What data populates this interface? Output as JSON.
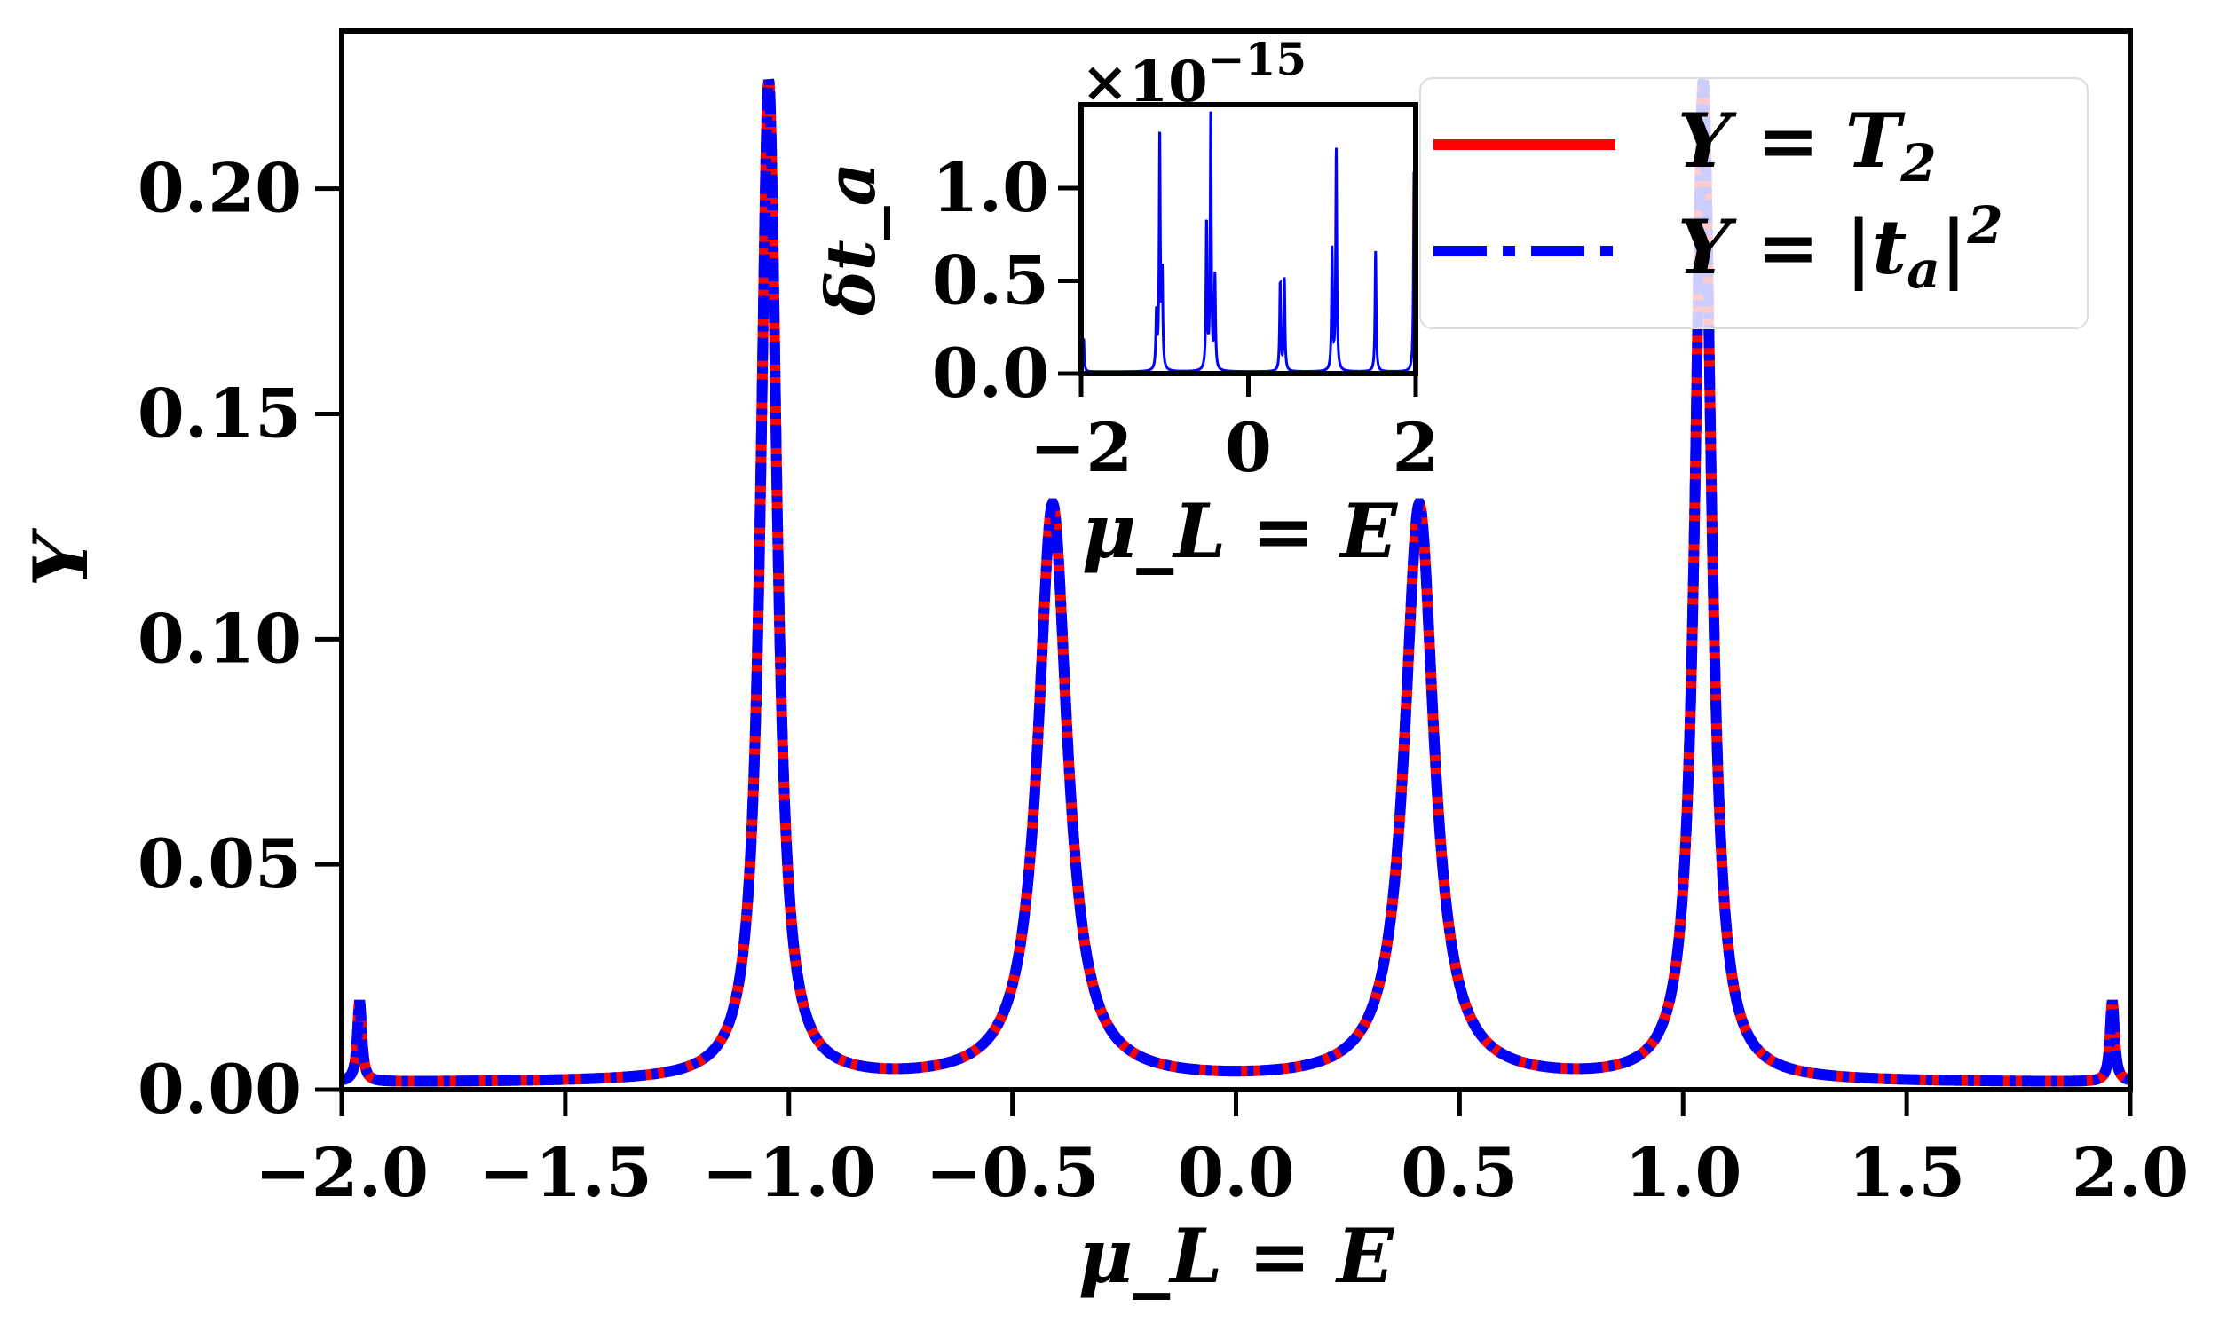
{
  "chart_data": [
    {
      "type": "line",
      "xlabel": "μ_L = E",
      "ylabel": "Y",
      "xlim": [
        -2.0,
        2.0
      ],
      "ylim": [
        0.0,
        0.235
      ],
      "x_ticks": [
        "−2.0",
        "−1.5",
        "−1.0",
        "−0.5",
        "0.0",
        "0.5",
        "1.0",
        "1.5",
        "2.0"
      ],
      "x_tick_values": [
        -2.0,
        -1.5,
        -1.0,
        -0.5,
        0.0,
        0.5,
        1.0,
        1.5,
        2.0
      ],
      "y_ticks": [
        "0.00",
        "0.05",
        "0.10",
        "0.15",
        "0.20"
      ],
      "y_tick_values": [
        0.0,
        0.05,
        0.1,
        0.15,
        0.2
      ],
      "grid": false,
      "legend_position": "top-right",
      "peaks": [
        {
          "x": -1.96,
          "height": 0.018,
          "width": 0.006
        },
        {
          "x": -1.045,
          "height": 0.222,
          "width": 0.022
        },
        {
          "x": -0.41,
          "height": 0.128,
          "width": 0.04
        },
        {
          "x": 0.41,
          "height": 0.128,
          "width": 0.04
        },
        {
          "x": 1.045,
          "height": 0.222,
          "width": 0.022
        },
        {
          "x": 1.96,
          "height": 0.018,
          "width": 0.006
        }
      ],
      "series": [
        {
          "name": "Y = T_2",
          "legend_main": "Y = T",
          "legend_sub": "2",
          "color": "#ff0000",
          "style": "solid"
        },
        {
          "name": "Y = |t_a|^2",
          "legend_main": "Y = |t",
          "legend_sub": "a",
          "legend_end": "|",
          "legend_sup": "2",
          "color": "#0000ff",
          "style": "dashdot"
        }
      ]
    },
    {
      "type": "line",
      "inset": true,
      "xlabel": "μ_L = E",
      "ylabel": "δt_a",
      "offset_text": "×10",
      "offset_exp": "−15",
      "xlim": [
        -2,
        2
      ],
      "ylim": [
        0.0,
        1.45
      ],
      "x_ticks": [
        "−2",
        "0",
        "2"
      ],
      "x_tick_values": [
        -2,
        0,
        2
      ],
      "y_ticks": [
        "0.0",
        "0.5",
        "1.0"
      ],
      "y_tick_values": [
        0.0,
        0.5,
        1.0
      ],
      "spikes": [
        {
          "x": -1.97,
          "height": 0.18
        },
        {
          "x": -1.1,
          "height": 0.3
        },
        {
          "x": -1.06,
          "height": 1.28
        },
        {
          "x": -1.03,
          "height": 0.5
        },
        {
          "x": -0.5,
          "height": 0.8
        },
        {
          "x": -0.45,
          "height": 1.38
        },
        {
          "x": -0.4,
          "height": 0.5
        },
        {
          "x": 0.38,
          "height": 0.48
        },
        {
          "x": 0.43,
          "height": 0.5
        },
        {
          "x": 1.0,
          "height": 0.65
        },
        {
          "x": 1.05,
          "height": 1.2
        },
        {
          "x": 1.52,
          "height": 0.65
        },
        {
          "x": 1.98,
          "height": 1.1
        }
      ],
      "series": [
        {
          "name": "δt_a",
          "color": "#0000ff"
        }
      ]
    }
  ],
  "colors": {
    "T2": "#ff0000",
    "ta": "#0000ff"
  }
}
